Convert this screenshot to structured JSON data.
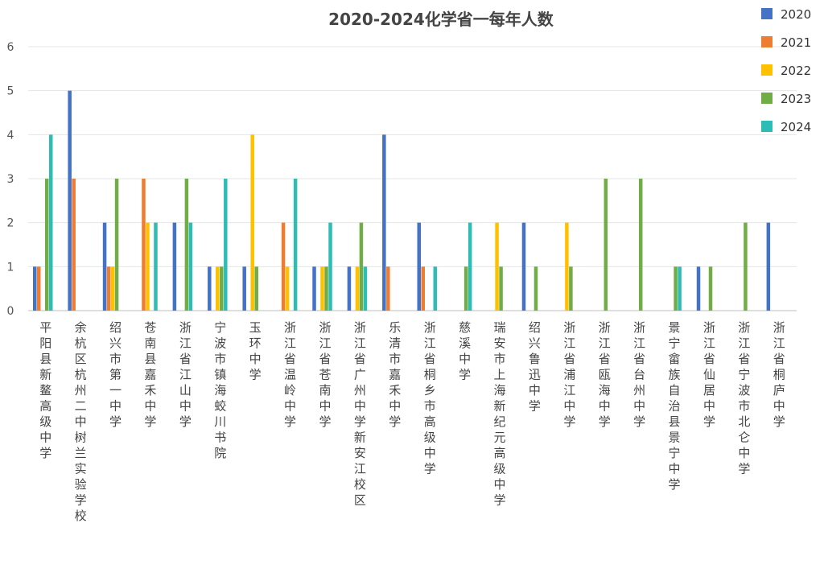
{
  "chart_data": {
    "type": "bar",
    "title": "2020-2024化学省一每年人数",
    "xlabel": "",
    "ylabel": "",
    "ylim": [
      0,
      6
    ],
    "yticks": [
      0,
      1,
      2,
      3,
      4,
      5,
      6
    ],
    "grid": true,
    "legend_position": "top-right",
    "categories": [
      "平阳县新鳌高级中学",
      "余杭区杭州二中树兰实验学校",
      "绍兴市第一中学",
      "苍南县嘉禾中学",
      "浙江省江山中学",
      "宁波市镇海蛟川书院",
      "玉环中学",
      "浙江省温岭中学",
      "浙江省苍南中学",
      "浙江省广州中学新安江校区",
      "乐清市嘉禾中学",
      "浙江省桐乡市高级中学",
      "慈溪中学",
      "瑞安市上海新纪元高级中学",
      "绍兴鲁迅中学",
      "浙江省浦江中学",
      "浙江省瓯海中学",
      "浙江省台州中学",
      "景宁畲族自治县景宁中学",
      "浙江省仙居中学",
      "浙江省宁波市北仑中学",
      "浙江省桐庐中学"
    ],
    "series": [
      {
        "name": "2020",
        "color": "#4472c4",
        "values": [
          1,
          5,
          2,
          0,
          2,
          1,
          1,
          0,
          1,
          1,
          4,
          2,
          0,
          0,
          2,
          0,
          0,
          0,
          0,
          1,
          0,
          2
        ]
      },
      {
        "name": "2021",
        "color": "#ed7d31",
        "values": [
          1,
          3,
          1,
          3,
          0,
          0,
          0,
          2,
          0,
          0,
          1,
          1,
          0,
          0,
          0,
          0,
          0,
          0,
          0,
          0,
          0,
          0
        ]
      },
      {
        "name": "2022",
        "color": "#ffc000",
        "values": [
          0,
          0,
          1,
          2,
          0,
          1,
          4,
          1,
          1,
          1,
          0,
          0,
          0,
          2,
          0,
          2,
          0,
          0,
          0,
          0,
          0,
          0
        ]
      },
      {
        "name": "2023",
        "color": "#70ad47",
        "values": [
          3,
          0,
          3,
          0,
          3,
          1,
          1,
          0,
          1,
          2,
          0,
          0,
          1,
          1,
          1,
          1,
          3,
          3,
          1,
          1,
          2,
          0
        ]
      },
      {
        "name": "2024",
        "color": "#2ebdb4",
        "values": [
          4,
          0,
          0,
          2,
          2,
          3,
          0,
          3,
          2,
          1,
          0,
          1,
          2,
          0,
          0,
          0,
          0,
          0,
          1,
          0,
          0,
          0
        ]
      }
    ]
  }
}
